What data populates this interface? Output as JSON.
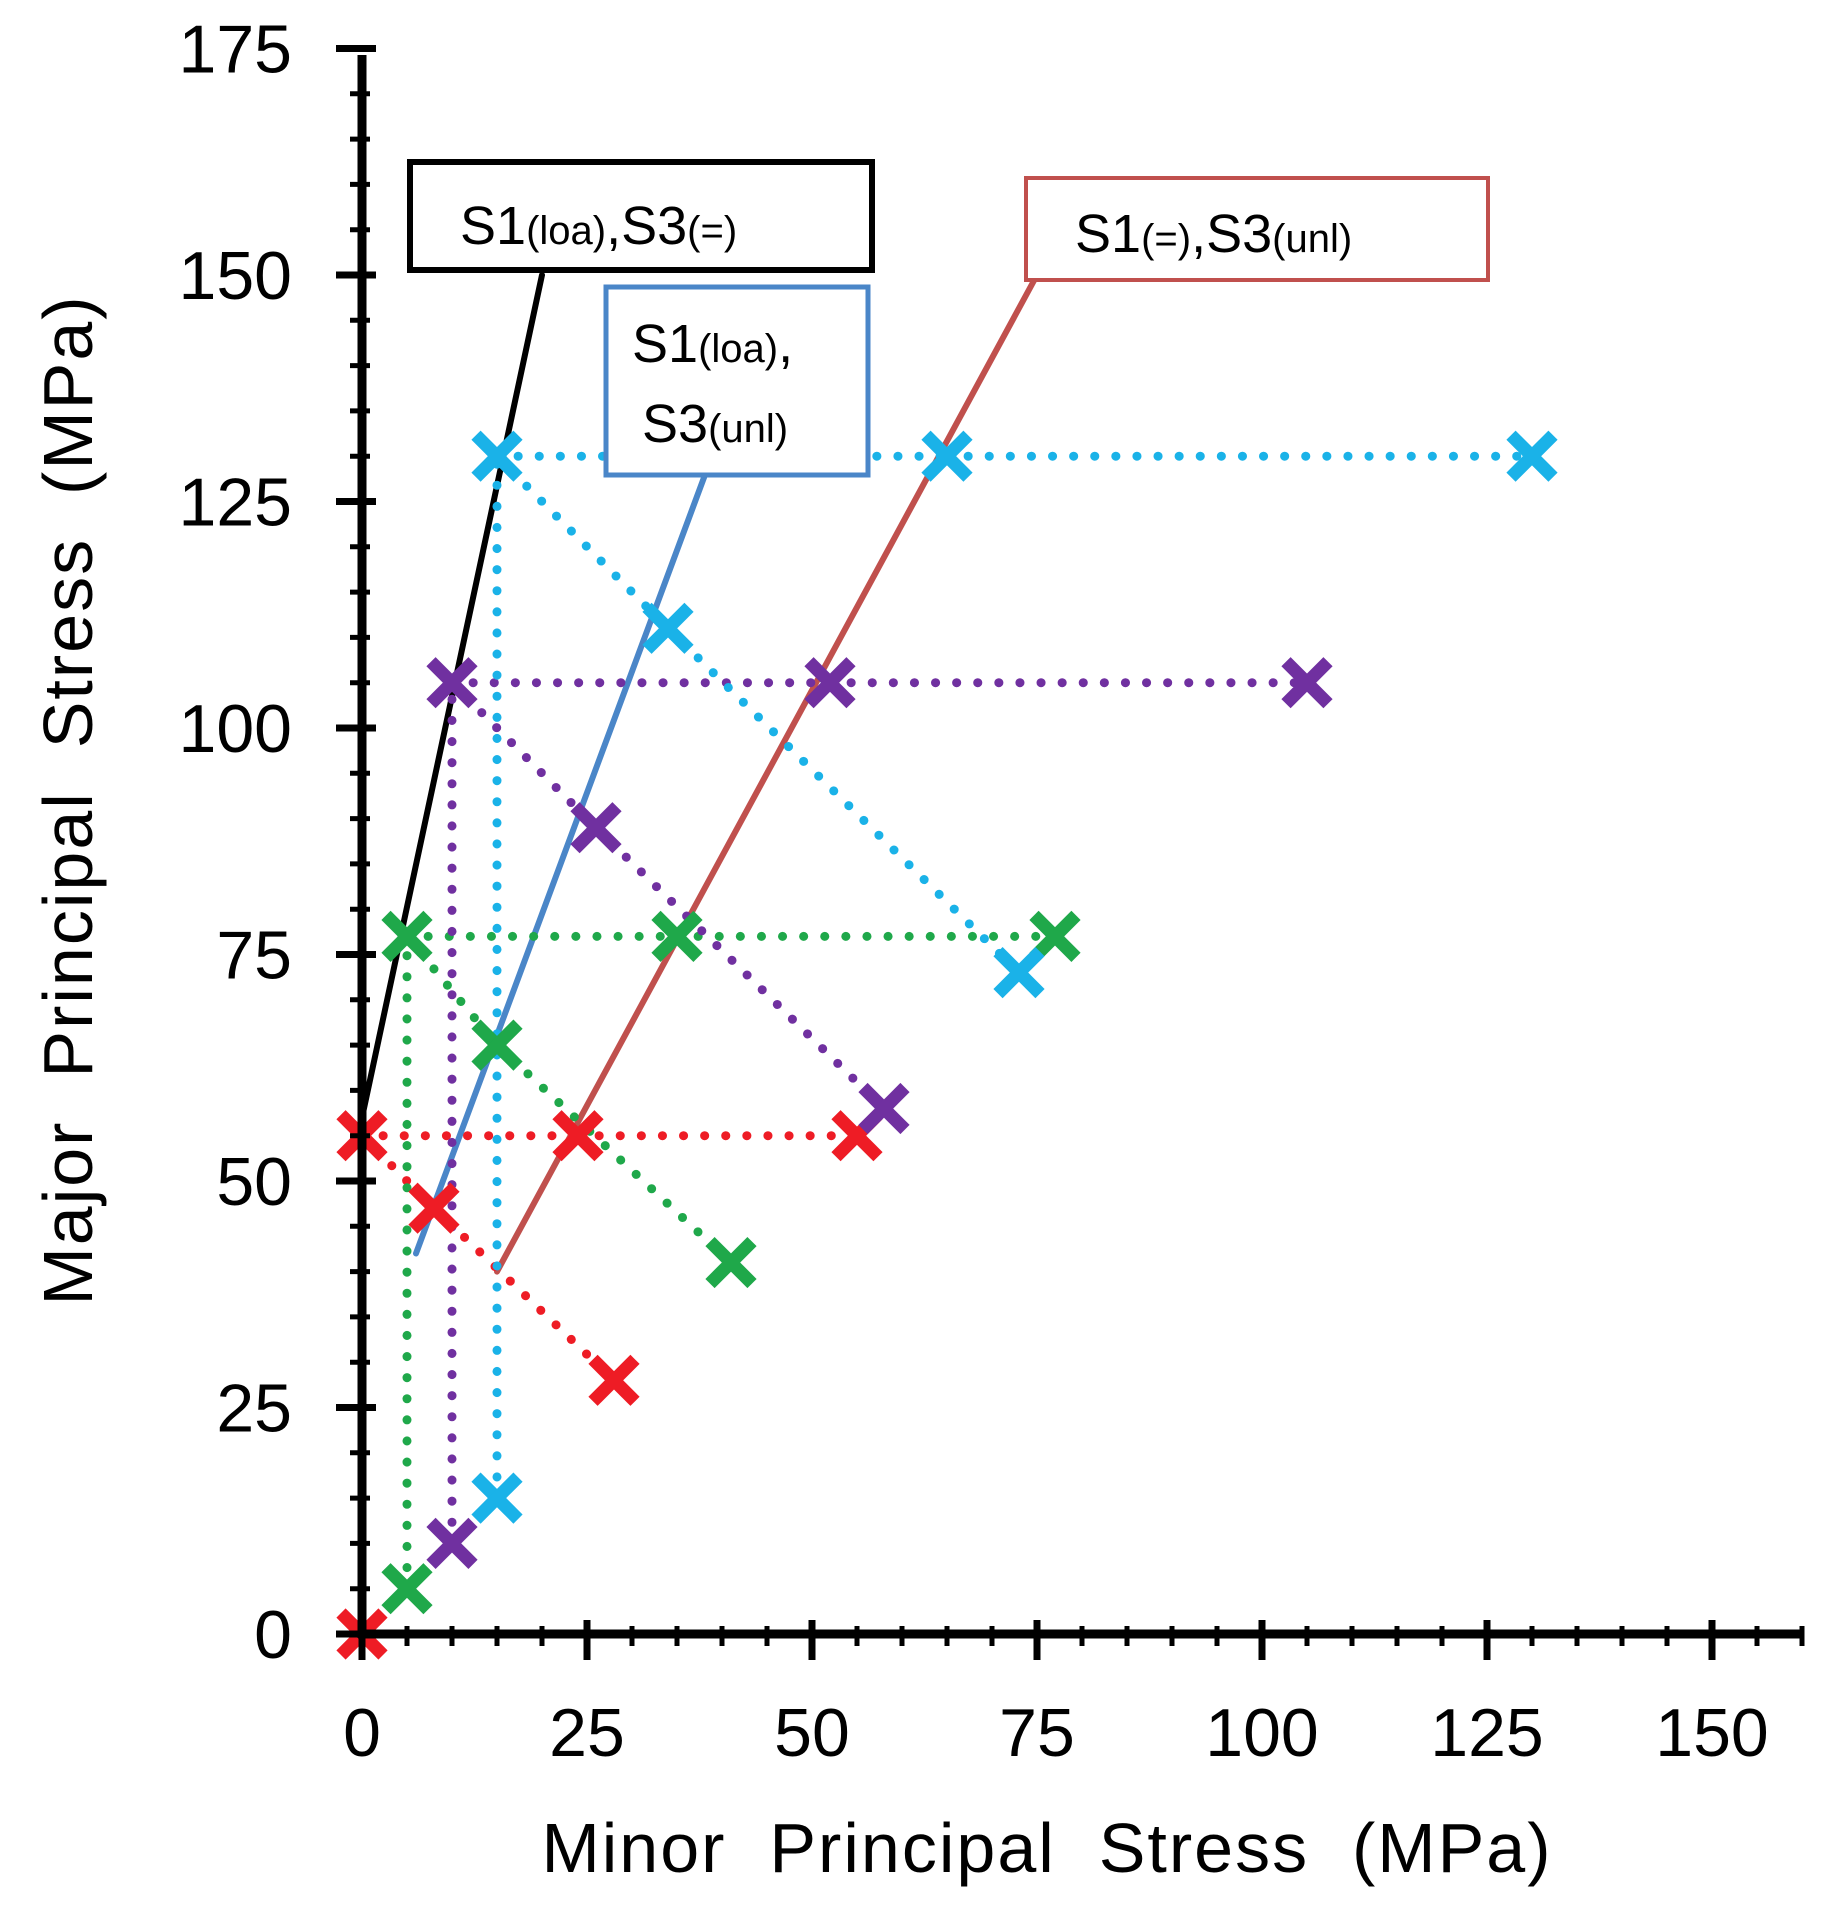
{
  "chart_data": {
    "type": "scatter",
    "title": "",
    "xlabel": "Minor  Principal  Stress  (MPa)",
    "ylabel": "Major  Principal  Stress  (MPa)",
    "xlim": [
      0,
      160
    ],
    "ylim": [
      0,
      175
    ],
    "x_ticks": [
      0,
      25,
      50,
      75,
      100,
      125,
      150
    ],
    "y_ticks": [
      0,
      25,
      50,
      75,
      100,
      125,
      150,
      175
    ],
    "x_tick_labels": [
      "0",
      "25",
      "50",
      "75",
      "100",
      "125",
      "150"
    ],
    "y_tick_labels": [
      "0",
      "25",
      "50",
      "75",
      "100",
      "125",
      "150",
      "175"
    ],
    "grid": false,
    "series": [
      {
        "name": "red",
        "color": "#ee1c25",
        "marker": "x",
        "points": [
          [
            0,
            0
          ],
          [
            0,
            55
          ],
          [
            8,
            47
          ],
          [
            28,
            28
          ],
          [
            24,
            55
          ],
          [
            55,
            55
          ]
        ],
        "segments": [
          [
            0,
            1
          ],
          [
            1,
            2
          ],
          [
            2,
            3
          ],
          [
            1,
            4
          ],
          [
            4,
            5
          ]
        ]
      },
      {
        "name": "green",
        "color": "#1fa84a",
        "marker": "x",
        "points": [
          [
            5,
            5
          ],
          [
            5,
            77
          ],
          [
            15,
            65
          ],
          [
            41,
            41
          ],
          [
            35,
            77
          ],
          [
            77,
            77
          ]
        ],
        "segments": [
          [
            0,
            1
          ],
          [
            1,
            2
          ],
          [
            2,
            3
          ],
          [
            1,
            4
          ],
          [
            4,
            5
          ]
        ]
      },
      {
        "name": "purple",
        "color": "#7030a0",
        "marker": "x",
        "points": [
          [
            10,
            10
          ],
          [
            10,
            105
          ],
          [
            26,
            89
          ],
          [
            58,
            58
          ],
          [
            52,
            105
          ],
          [
            105,
            105
          ]
        ],
        "segments": [
          [
            0,
            1
          ],
          [
            1,
            2
          ],
          [
            2,
            3
          ],
          [
            1,
            4
          ],
          [
            4,
            5
          ]
        ]
      },
      {
        "name": "cyan",
        "color": "#1ab2e8",
        "marker": "x",
        "points": [
          [
            15,
            15
          ],
          [
            15,
            130
          ],
          [
            34,
            111
          ],
          [
            73,
            73
          ],
          [
            65,
            130
          ],
          [
            130,
            130
          ]
        ],
        "segments": [
          [
            0,
            1
          ],
          [
            1,
            2
          ],
          [
            2,
            3
          ],
          [
            1,
            4
          ],
          [
            4,
            5
          ]
        ]
      }
    ],
    "trend_lines": [
      {
        "name": "S1(loa),S3(=)",
        "color": "#000000",
        "x": [
          0,
          20
        ],
        "y": [
          57,
          150
        ]
      },
      {
        "name": "S1(loa),S3(unl)",
        "color": "#4a86c8",
        "x": [
          6,
          40
        ],
        "y": [
          42,
          133
        ]
      },
      {
        "name": "S1(=),S3(unl)",
        "color": "#c0504d",
        "x": [
          15,
          75
        ],
        "y": [
          40,
          150
        ]
      }
    ],
    "annotations": [
      {
        "id": "a1",
        "border": "#000000",
        "line1_main": "S1",
        "line1_sub": "(loa)",
        "line1_main2": ",S3",
        "line1_sub2": "(=)"
      },
      {
        "id": "a2",
        "border": "#4a86c8",
        "line1_main": "S1",
        "line1_sub": "(loa)",
        "line1_main2": ",",
        "line2_main": "S3",
        "line2_sub": "(unl)"
      },
      {
        "id": "a3",
        "border": "#c0504d",
        "line1_main": "S1",
        "line1_sub": "(=)",
        "line1_main2": ",S3",
        "line1_sub2": "(unl)"
      }
    ]
  }
}
